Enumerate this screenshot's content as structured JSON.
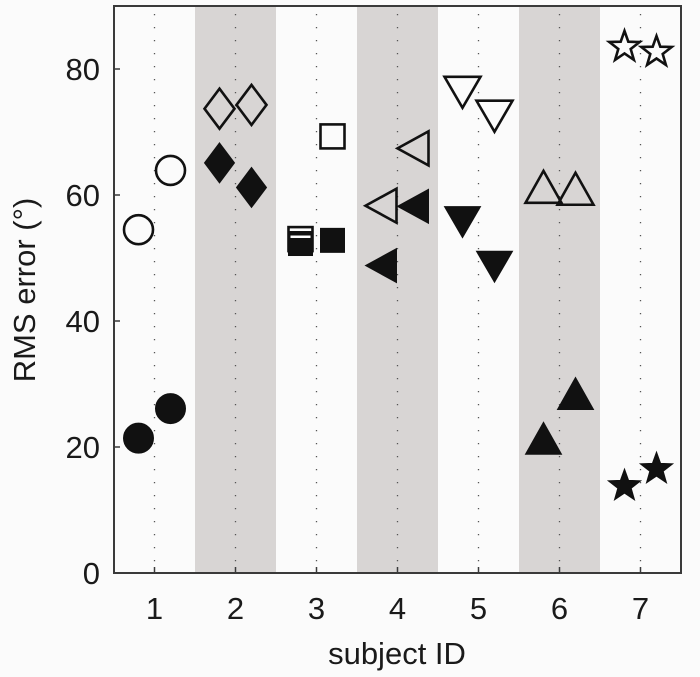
{
  "chart_data": {
    "type": "scatter",
    "title": "",
    "xlabel": "subject ID",
    "ylabel": "RMS error (°)",
    "xlim": [
      0.5,
      7.5
    ],
    "ylim": [
      0,
      90
    ],
    "x_ticks": [
      1,
      2,
      3,
      4,
      5,
      6,
      7
    ],
    "y_ticks": [
      0,
      20,
      40,
      60,
      80
    ],
    "grid": "dotted vertical lines at each subject",
    "shaded_bands": [
      2,
      4,
      6
    ],
    "band_color": "#d8d5d4",
    "legend": null,
    "series": [
      {
        "name": "open markers",
        "fill": "none",
        "points": [
          {
            "subject": 1,
            "marker": "circle",
            "offset": -0.2,
            "value": 54.5
          },
          {
            "subject": 1,
            "marker": "circle",
            "offset": 0.2,
            "value": 63.9
          },
          {
            "subject": 2,
            "marker": "diamond",
            "offset": -0.2,
            "value": 73.7
          },
          {
            "subject": 2,
            "marker": "diamond",
            "offset": 0.2,
            "value": 74.3
          },
          {
            "subject": 3,
            "marker": "square",
            "offset": -0.2,
            "value": 53.0
          },
          {
            "subject": 3,
            "marker": "square",
            "offset": 0.2,
            "value": 69.3
          },
          {
            "subject": 4,
            "marker": "triangle-left",
            "offset": -0.2,
            "value": 58.3
          },
          {
            "subject": 4,
            "marker": "triangle-left",
            "offset": 0.2,
            "value": 67.4
          },
          {
            "subject": 5,
            "marker": "triangle-down",
            "offset": -0.2,
            "value": 76.7
          },
          {
            "subject": 5,
            "marker": "triangle-down",
            "offset": 0.2,
            "value": 72.9
          },
          {
            "subject": 6,
            "marker": "triangle-up",
            "offset": -0.2,
            "value": 60.5
          },
          {
            "subject": 6,
            "marker": "triangle-up",
            "offset": 0.2,
            "value": 60.2
          },
          {
            "subject": 7,
            "marker": "star",
            "offset": -0.2,
            "value": 83.5
          },
          {
            "subject": 7,
            "marker": "star",
            "offset": 0.2,
            "value": 82.7
          }
        ]
      },
      {
        "name": "filled markers",
        "fill": "#111111",
        "points": [
          {
            "subject": 1,
            "marker": "circle",
            "offset": -0.2,
            "value": 21.4
          },
          {
            "subject": 1,
            "marker": "circle",
            "offset": 0.2,
            "value": 26.1
          },
          {
            "subject": 2,
            "marker": "diamond",
            "offset": -0.2,
            "value": 65.1
          },
          {
            "subject": 2,
            "marker": "diamond",
            "offset": 0.2,
            "value": 61.2
          },
          {
            "subject": 3,
            "marker": "square",
            "offset": -0.2,
            "value": 52.3
          },
          {
            "subject": 3,
            "marker": "square",
            "offset": 0.2,
            "value": 52.8
          },
          {
            "subject": 4,
            "marker": "triangle-left",
            "offset": -0.2,
            "value": 48.8
          },
          {
            "subject": 4,
            "marker": "triangle-left",
            "offset": 0.2,
            "value": 58.2
          },
          {
            "subject": 5,
            "marker": "triangle-down",
            "offset": -0.2,
            "value": 56.1
          },
          {
            "subject": 5,
            "marker": "triangle-down",
            "offset": 0.2,
            "value": 49.0
          },
          {
            "subject": 6,
            "marker": "triangle-up",
            "offset": -0.2,
            "value": 20.6
          },
          {
            "subject": 6,
            "marker": "triangle-up",
            "offset": 0.2,
            "value": 27.7
          },
          {
            "subject": 7,
            "marker": "star",
            "offset": -0.2,
            "value": 13.8
          },
          {
            "subject": 7,
            "marker": "star",
            "offset": 0.2,
            "value": 16.5
          }
        ]
      }
    ]
  },
  "axes": {
    "xlabel": "subject ID",
    "ylabel": "RMS error (°)",
    "x_tick_labels": [
      "1",
      "2",
      "3",
      "4",
      "5",
      "6",
      "7"
    ],
    "y_tick_labels": [
      "0",
      "20",
      "40",
      "60",
      "80"
    ]
  },
  "colors": {
    "background": "#fbfbfb",
    "band": "#d8d5d4",
    "ink": "#111111",
    "axis": "#3a3a3a"
  }
}
